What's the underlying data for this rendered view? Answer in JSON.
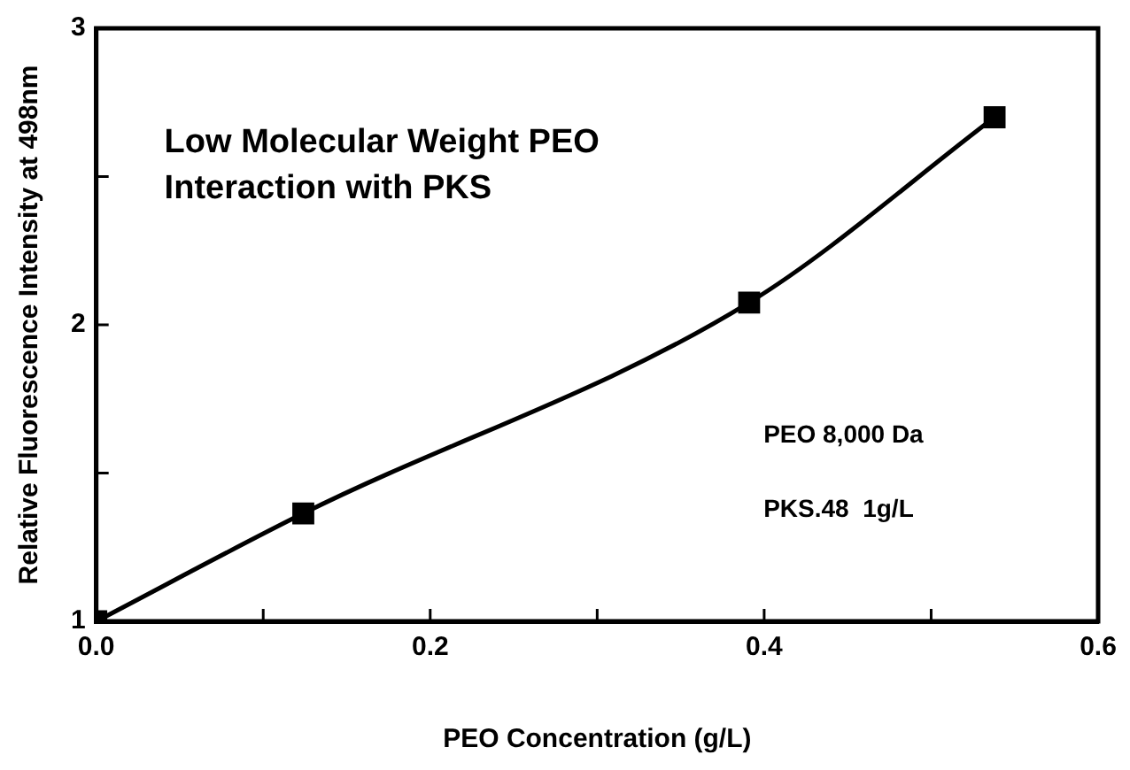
{
  "chart_data": {
    "type": "line",
    "title": "Low Molecular Weight PEO\nInteraction with PKS",
    "xlabel": "PEO Concentration (g/L)",
    "ylabel": "Relative Fluorescence Intensity at 498nm",
    "annotations": [
      "PEO 8,000 Da",
      "PKS.48  1g/L"
    ],
    "x": [
      0,
      0.124,
      0.391,
      0.538
    ],
    "series": [
      {
        "color": "#000000",
        "values": [
          1,
          1.364,
          2.075,
          2.7
        ]
      }
    ],
    "xlim": [
      0,
      0.6
    ],
    "xticks": [
      {
        "value": 0,
        "label": "0.0"
      },
      {
        "value": 0.1,
        "label": null
      },
      {
        "value": 0.2,
        "label": "0.2"
      },
      {
        "value": 0.3,
        "label": null
      },
      {
        "value": 0.4,
        "label": "0.4"
      },
      {
        "value": 0.5,
        "label": null
      },
      {
        "value": 0.6,
        "label": "0.6"
      }
    ],
    "ylim": [
      1,
      3
    ],
    "yticks": [
      1,
      {
        "value": 1.5,
        "label": null
      },
      2,
      {
        "value": 2.5,
        "label": null
      },
      3
    ],
    "grid": false,
    "legend": false,
    "marker": "square",
    "line_style": "solid"
  }
}
